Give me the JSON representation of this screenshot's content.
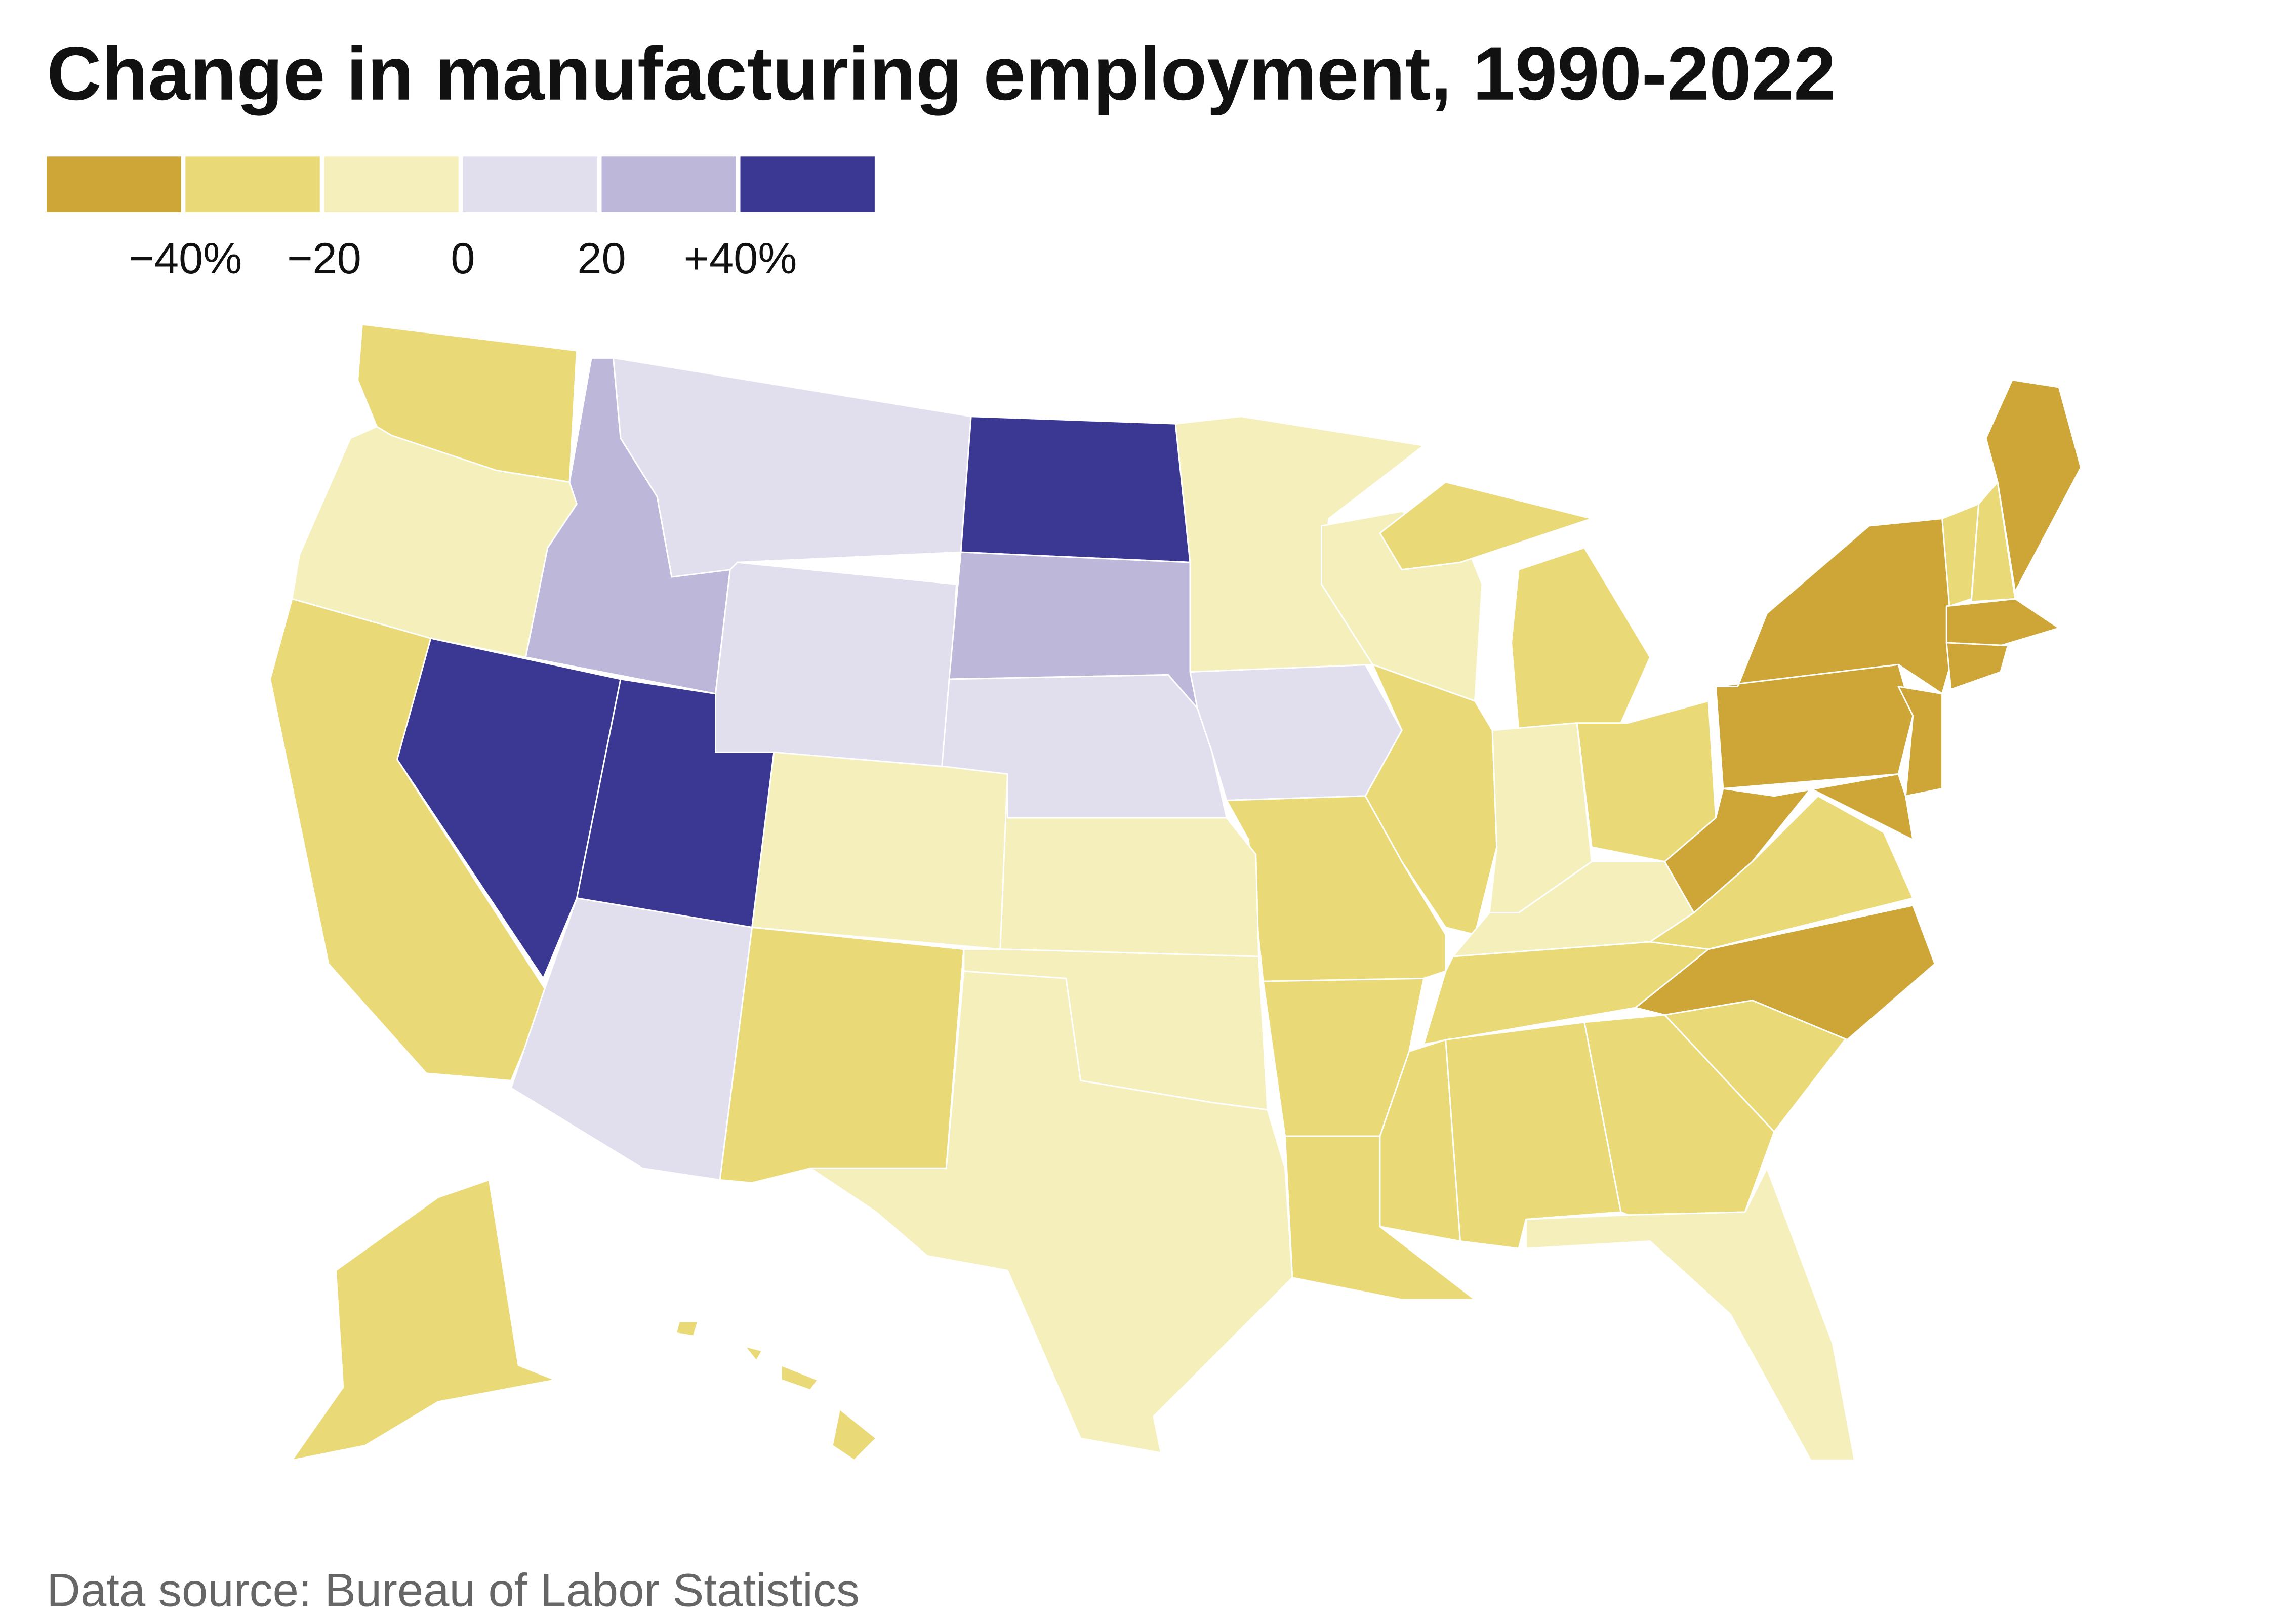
{
  "title": "Change in manufacturing employment, 1990-2022",
  "source": "Data source: Bureau of Labor Statistics",
  "legend": {
    "bins": [
      {
        "range": "below -40%",
        "color": "#CDA637"
      },
      {
        "range": "-40% to -20%",
        "color": "#EAD977"
      },
      {
        "range": "-20% to 0%",
        "color": "#F4EFBB"
      },
      {
        "range": "0% to 20%",
        "color": "#E1DEED"
      },
      {
        "range": "20% to 40%",
        "color": "#BDB7DA"
      },
      {
        "range": "above +40%",
        "color": "#3B3893"
      }
    ],
    "ticks": [
      "−40%",
      "−20",
      "0",
      "20",
      "+40%"
    ]
  },
  "chart_data": {
    "type": "choropleth",
    "title": "Change in manufacturing employment, 1990-2022",
    "unit": "% change",
    "states": [
      {
        "state": "WA",
        "bin": 1
      },
      {
        "state": "OR",
        "bin": 2
      },
      {
        "state": "ID",
        "bin": 4
      },
      {
        "state": "MT",
        "bin": 3
      },
      {
        "state": "WY",
        "bin": 3
      },
      {
        "state": "ND",
        "bin": 5
      },
      {
        "state": "SD",
        "bin": 4
      },
      {
        "state": "NE",
        "bin": 3
      },
      {
        "state": "IA",
        "bin": 3
      },
      {
        "state": "MN",
        "bin": 2
      },
      {
        "state": "WI",
        "bin": 2
      },
      {
        "state": "MI",
        "bin": 1
      },
      {
        "state": "IL",
        "bin": 1
      },
      {
        "state": "IN",
        "bin": 2
      },
      {
        "state": "OH",
        "bin": 1
      },
      {
        "state": "KY",
        "bin": 2
      },
      {
        "state": "TN",
        "bin": 1
      },
      {
        "state": "MO",
        "bin": 1
      },
      {
        "state": "AR",
        "bin": 1
      },
      {
        "state": "LA",
        "bin": 1
      },
      {
        "state": "MS",
        "bin": 1
      },
      {
        "state": "AL",
        "bin": 1
      },
      {
        "state": "GA",
        "bin": 1
      },
      {
        "state": "FL",
        "bin": 2
      },
      {
        "state": "SC",
        "bin": 1
      },
      {
        "state": "NC",
        "bin": 0
      },
      {
        "state": "VA",
        "bin": 1
      },
      {
        "state": "WV",
        "bin": 0
      },
      {
        "state": "PA",
        "bin": 0
      },
      {
        "state": "NY",
        "bin": 0
      },
      {
        "state": "NJ",
        "bin": 0
      },
      {
        "state": "MD",
        "bin": 0
      },
      {
        "state": "DE",
        "bin": 0
      },
      {
        "state": "VT",
        "bin": 1
      },
      {
        "state": "NH",
        "bin": 1
      },
      {
        "state": "ME",
        "bin": 0
      },
      {
        "state": "MA",
        "bin": 0
      },
      {
        "state": "CT",
        "bin": 0
      },
      {
        "state": "RI",
        "bin": 0
      },
      {
        "state": "CA",
        "bin": 1
      },
      {
        "state": "NV",
        "bin": 5
      },
      {
        "state": "UT",
        "bin": 5
      },
      {
        "state": "AZ",
        "bin": 3
      },
      {
        "state": "CO",
        "bin": 2
      },
      {
        "state": "NM",
        "bin": 1
      },
      {
        "state": "KS",
        "bin": 2
      },
      {
        "state": "OK",
        "bin": 2
      },
      {
        "state": "TX",
        "bin": 2
      },
      {
        "state": "AK",
        "bin": 1
      },
      {
        "state": "HI",
        "bin": 1
      }
    ]
  }
}
